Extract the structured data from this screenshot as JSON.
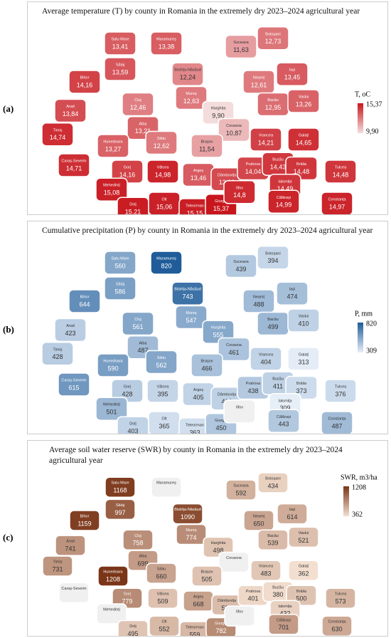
{
  "panel_labels": [
    "(a)",
    "(b)",
    "(c)"
  ],
  "maps": [
    {
      "title": "Average temperature (T) by county in Romania in the extremely dry 2023–2024 agricultural year",
      "legend": {
        "title": "T, oC",
        "max": {
          "value": 15.37,
          "label": "15,37"
        },
        "min": {
          "value": 9.9,
          "label": "9,90"
        },
        "color_min": "#f4dcdc",
        "color_max": "#c8161d"
      },
      "regions": [
        {
          "name": "Satu Mare",
          "value": 13.41,
          "value_label": "13,41"
        },
        {
          "name": "Maramureș",
          "value": 13.38,
          "value_label": "13,38"
        },
        {
          "name": "Suceava",
          "value": 11.63,
          "value_label": "11,63"
        },
        {
          "name": "Botoșani",
          "value": 12.73,
          "value_label": "12,73"
        },
        {
          "name": "Bihor",
          "value": 14.16,
          "value_label": "14,16"
        },
        {
          "name": "Sălaj",
          "value": 13.59,
          "value_label": "13,59"
        },
        {
          "name": "Bistrița-Năsăud",
          "value": 12.24,
          "value_label": "12,24"
        },
        {
          "name": "Iași",
          "value": 13.45,
          "value_label": "13,45"
        },
        {
          "name": "Neamț",
          "value": 12.61,
          "value_label": "12,61"
        },
        {
          "name": "Cluj",
          "value": 12.46,
          "value_label": "12,46"
        },
        {
          "name": "Mureș",
          "value": 12.63,
          "value_label": "12,63"
        },
        {
          "name": "Harghita",
          "value": 9.9,
          "value_label": "9,90"
        },
        {
          "name": "Bacău",
          "value": 12.95,
          "value_label": "12,95"
        },
        {
          "name": "Vaslui",
          "value": 13.26,
          "value_label": "13,26"
        },
        {
          "name": "Arad",
          "value": 13.84,
          "value_label": "13,84"
        },
        {
          "name": "Alba",
          "value": 13.21,
          "value_label": "13,21"
        },
        {
          "name": "Covasna",
          "value": 10.87,
          "value_label": "10,87"
        },
        {
          "name": "Timiș",
          "value": 14.74,
          "value_label": "14,74"
        },
        {
          "name": "Hunedoara",
          "value": 13.27,
          "value_label": "13,27"
        },
        {
          "name": "Sibiu",
          "value": 12.62,
          "value_label": "12,62"
        },
        {
          "name": "Brașov",
          "value": 11.54,
          "value_label": "11,54"
        },
        {
          "name": "Vrancea",
          "value": 14.21,
          "value_label": "14,21"
        },
        {
          "name": "Galați",
          "value": 14.65,
          "value_label": "14,65"
        },
        {
          "name": "Caraș-Severin",
          "value": 14.71,
          "value_label": "14,71"
        },
        {
          "name": "Gorj",
          "value": 14.16,
          "value_label": "14,16"
        },
        {
          "name": "Vâlcea",
          "value": 14.98,
          "value_label": "14,98"
        },
        {
          "name": "Argeș",
          "value": 13.46,
          "value_label": "13,46"
        },
        {
          "name": "Dâmbovița",
          "value": 13.93,
          "value_label": "13,93"
        },
        {
          "name": "Prahova",
          "value": 14.04,
          "value_label": "14,04"
        },
        {
          "name": "Buzău",
          "value": 14.43,
          "value_label": "14,43"
        },
        {
          "name": "Brăila",
          "value": 14.48,
          "value_label": "14,48"
        },
        {
          "name": "Tulcea",
          "value": 14.48,
          "value_label": "14,48"
        },
        {
          "name": "Mehedinți",
          "value": 15.08,
          "value_label": "15,08"
        },
        {
          "name": "Dolj",
          "value": 15.21,
          "value_label": "15,21"
        },
        {
          "name": "Olt",
          "value": 15.06,
          "value_label": "15,06"
        },
        {
          "name": "Teleorman",
          "value": 15.15,
          "value_label": "15,15"
        },
        {
          "name": "Giurgiu",
          "value": 15.37,
          "value_label": "15,37"
        },
        {
          "name": "Ilfov",
          "value": 14.8,
          "value_label": "14,8"
        },
        {
          "name": "Ialomița",
          "value": 14.49,
          "value_label": "14,49"
        },
        {
          "name": "Călărași",
          "value": 14.99,
          "value_label": "14,99"
        },
        {
          "name": "Constanța",
          "value": 14.97,
          "value_label": "14,97"
        }
      ]
    },
    {
      "title": "Cumulative precipitation (P) by county in Romania in the extremely dry 2023–2024 agricultural year",
      "legend": {
        "title": "P, mm",
        "max": 820,
        "min": 309,
        "color_min": "#e6eef8",
        "color_max": "#1f5c99"
      },
      "regions": [
        {
          "name": "Satu Mare",
          "value": 560
        },
        {
          "name": "Maramureș",
          "value": 820
        },
        {
          "name": "Suceava",
          "value": 439
        },
        {
          "name": "Botoșani",
          "value": 394
        },
        {
          "name": "Bihor",
          "value": 644
        },
        {
          "name": "Sălaj",
          "value": 586
        },
        {
          "name": "Bistrița-Năsăud",
          "value": 743
        },
        {
          "name": "Iași",
          "value": 474
        },
        {
          "name": "Neamț",
          "value": 488
        },
        {
          "name": "Cluj",
          "value": 561
        },
        {
          "name": "Mureș",
          "value": 547
        },
        {
          "name": "Harghita",
          "value": 555
        },
        {
          "name": "Bacău",
          "value": 499
        },
        {
          "name": "Vaslui",
          "value": 410
        },
        {
          "name": "Arad",
          "value": 423
        },
        {
          "name": "Alba",
          "value": 487
        },
        {
          "name": "Covasna",
          "value": 461
        },
        {
          "name": "Timiș",
          "value": 428
        },
        {
          "name": "Hunedoara",
          "value": 590
        },
        {
          "name": "Sibiu",
          "value": 562
        },
        {
          "name": "Brașov",
          "value": 466
        },
        {
          "name": "Vrancea",
          "value": 404
        },
        {
          "name": "Galați",
          "value": 313
        },
        {
          "name": "Caraș-Severin",
          "value": 615
        },
        {
          "name": "Gorj",
          "value": 428
        },
        {
          "name": "Vâlcea",
          "value": 395
        },
        {
          "name": "Argeș",
          "value": 405
        },
        {
          "name": "Dâmbovița",
          "value": 412
        },
        {
          "name": "Prahova",
          "value": 438
        },
        {
          "name": "Buzău",
          "value": 411
        },
        {
          "name": "Brăila",
          "value": 373
        },
        {
          "name": "Tulcea",
          "value": 376
        },
        {
          "name": "Mehedinți",
          "value": 501
        },
        {
          "name": "Dolj",
          "value": 403
        },
        {
          "name": "Olt",
          "value": 365
        },
        {
          "name": "Teleorman",
          "value": 363
        },
        {
          "name": "Giurgiu",
          "value": 450
        },
        {
          "name": "Ilfov",
          "value": null
        },
        {
          "name": "Ialomița",
          "value": 309
        },
        {
          "name": "Călărași",
          "value": 443
        },
        {
          "name": "Constanța",
          "value": 487
        }
      ]
    },
    {
      "title": "Average soil water reserve (SWR) by county in Romania in the extremely dry 2023–2024 agricultural year",
      "legend": {
        "title": "SWR, m3/ha",
        "max": 1208,
        "min": 362,
        "color_min": "#f3dfd0",
        "color_max": "#7a3517"
      },
      "regions": [
        {
          "name": "Satu Mare",
          "value": 1168
        },
        {
          "name": "Maramureș",
          "value": null
        },
        {
          "name": "Suceava",
          "value": 592
        },
        {
          "name": "Botoșani",
          "value": 434
        },
        {
          "name": "Bihor",
          "value": 1159
        },
        {
          "name": "Sălaj",
          "value": 997
        },
        {
          "name": "Bistrița-Năsăud",
          "value": 1090
        },
        {
          "name": "Iași",
          "value": 614
        },
        {
          "name": "Neamț",
          "value": 650
        },
        {
          "name": "Cluj",
          "value": 758
        },
        {
          "name": "Mureș",
          "value": 774
        },
        {
          "name": "Harghita",
          "value": 498
        },
        {
          "name": "Bacău",
          "value": 539
        },
        {
          "name": "Vaslui",
          "value": 521
        },
        {
          "name": "Arad",
          "value": 741
        },
        {
          "name": "Alba",
          "value": 699
        },
        {
          "name": "Covasna",
          "value": null
        },
        {
          "name": "Timiș",
          "value": 731
        },
        {
          "name": "Hunedoara",
          "value": 1208
        },
        {
          "name": "Sibiu",
          "value": 660
        },
        {
          "name": "Brașov",
          "value": 505
        },
        {
          "name": "Vrancea",
          "value": 483
        },
        {
          "name": "Galați",
          "value": 362
        },
        {
          "name": "Caraș-Severin",
          "value": null
        },
        {
          "name": "Gorj",
          "value": 779
        },
        {
          "name": "Vâlcea",
          "value": 509
        },
        {
          "name": "Argeș",
          "value": 668
        },
        {
          "name": "Dâmbovița",
          "value": 536
        },
        {
          "name": "Prahova",
          "value": 401
        },
        {
          "name": "Buzău",
          "value": 380
        },
        {
          "name": "Brăila",
          "value": 500
        },
        {
          "name": "Tulcea",
          "value": 573
        },
        {
          "name": "Mehedinți",
          "value": null
        },
        {
          "name": "Dolj",
          "value": 495
        },
        {
          "name": "Olt",
          "value": 552
        },
        {
          "name": "Teleorman",
          "value": 559
        },
        {
          "name": "Giurgiu",
          "value": 782
        },
        {
          "name": "Ilfov",
          "value": null
        },
        {
          "name": "Ialomița",
          "value": 432
        },
        {
          "name": "Călărași",
          "value": 701
        },
        {
          "name": "Constanța",
          "value": 630
        }
      ]
    }
  ]
}
